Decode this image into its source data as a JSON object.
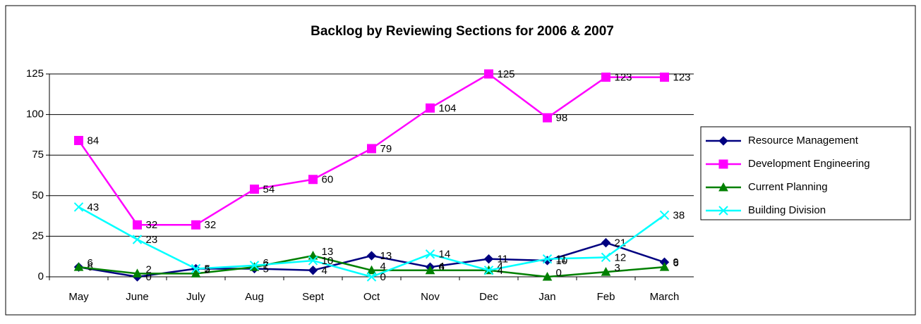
{
  "chart_data": {
    "type": "line",
    "title": "Backlog by Reviewing Sections for 2006 & 2007",
    "categories": [
      "May",
      "June",
      "July",
      "Aug",
      "Sept",
      "Oct",
      "Nov",
      "Dec",
      "Jan",
      "Feb",
      "March"
    ],
    "series": [
      {
        "name": "Resource Management",
        "color": "#000080",
        "marker": "diamond",
        "values": [
          6,
          0,
          5,
          5,
          4,
          13,
          6,
          11,
          10,
          21,
          9
        ]
      },
      {
        "name": "Development Engineering",
        "color": "#ff00ff",
        "marker": "square",
        "values": [
          84,
          32,
          32,
          54,
          60,
          79,
          104,
          125,
          98,
          123,
          123
        ]
      },
      {
        "name": "Current Planning",
        "color": "#008000",
        "marker": "triangle",
        "values": [
          6,
          2,
          2,
          6,
          13,
          4,
          4,
          4,
          0,
          3,
          6
        ]
      },
      {
        "name": "Building Division",
        "color": "#00ffff",
        "marker": "x",
        "values": [
          43,
          23,
          5,
          7,
          10,
          0,
          14,
          4,
          11,
          12,
          38
        ]
      }
    ],
    "ylim": [
      0,
      125
    ],
    "yticks": [
      0,
      25,
      50,
      75,
      100,
      125
    ],
    "grid": true,
    "legend": "right"
  }
}
